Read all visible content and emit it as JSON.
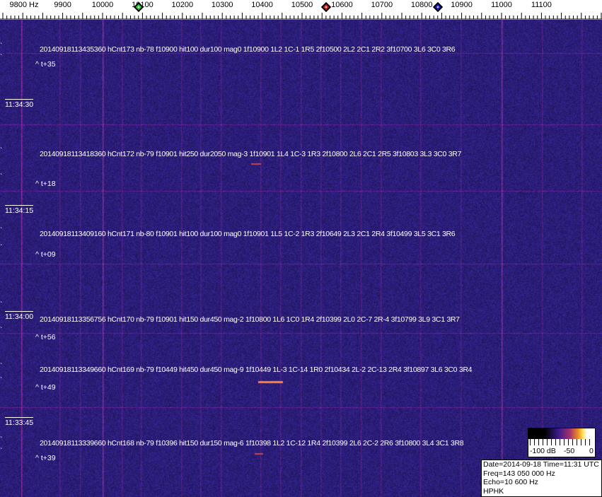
{
  "axis": {
    "unit_label": "9800 Hz",
    "ticks": [
      "9900",
      "10000",
      "10100",
      "10200",
      "10300",
      "10400",
      "10500",
      "10600",
      "10700",
      "10800",
      "10900",
      "11000",
      "11100"
    ],
    "markers": [
      {
        "name": "green-marker",
        "freq_hz": 10090,
        "color": "#30d030"
      },
      {
        "name": "red-marker",
        "freq_hz": 10560,
        "color": "#d02020"
      },
      {
        "name": "blue-marker",
        "freq_hz": 10840,
        "color": "#2020d0"
      }
    ]
  },
  "waterfall": {
    "background_color": "#2a2070",
    "time_labels": [
      "11:34:30",
      "11:34:15",
      "11:34:00",
      "11:33:45"
    ],
    "detections": [
      {
        "text": "20140918113435360 hCnt173 nb-78 f10900 hit100 dur100 mag0 1f10900 1L2 1C-1 1R5 2f10500 2L2 2C1 2R2 3f10700 3L6 3C0 3R6",
        "delta": "^ t+35"
      },
      {
        "text": "20140918113418360 hCnt172 nb-79 f10901 hit250 dur2050 mag-3 1f10901 1L4 1C-3 1R3 2f10800 2L6 2C1 2R5 3f10803 3L3 3C0 3R7",
        "delta": "^ t+18"
      },
      {
        "text": "20140918113409160 hCnt171 nb-80 f10901 hit100 dur100 mag0 1f10901 1L5 1C-2 1R3 2f10649 2L3 2C1 2R4 3f10499 3L5 3C1 3R6",
        "delta": "^ t+09"
      },
      {
        "text": "20140918113356756 hCnt170 nb-79 f10901 hit150 dur450 mag-2 1f10800 1L6 1C0 1R4 2f10399 2L0 2C-7 2R-4 3f10799 3L9 3C1 3R7",
        "delta": "^ t+56"
      },
      {
        "text": "20140918113349660 hCnt169 nb-79 f10449 hit450 dur450 mag-9 1f10449 1L-3 1C-14 1R0 2f10434 2L-2 2C-13 2R4 3f10897 3L6 3C0 3R4",
        "delta": "^ t+49"
      },
      {
        "text": "20140918113339660 hCnt168 nb-79 f10396 hit150 dur150 mag-6 1f10398 1L2 1C-12 1R4 2f10399 2L6 2C-2 2R6 3f10800 3L4 3C1 3R8",
        "delta": "^ t+39"
      }
    ]
  },
  "colorbar": {
    "labels": [
      "-100 dB",
      "-50",
      "0"
    ]
  },
  "info": {
    "line1": "Date=2014-09-18 Time=11:31 UTC",
    "line2": "Freq=143 050 000 Hz",
    "line3": "Echo=10 600 Hz",
    "line4": "HPHK"
  }
}
